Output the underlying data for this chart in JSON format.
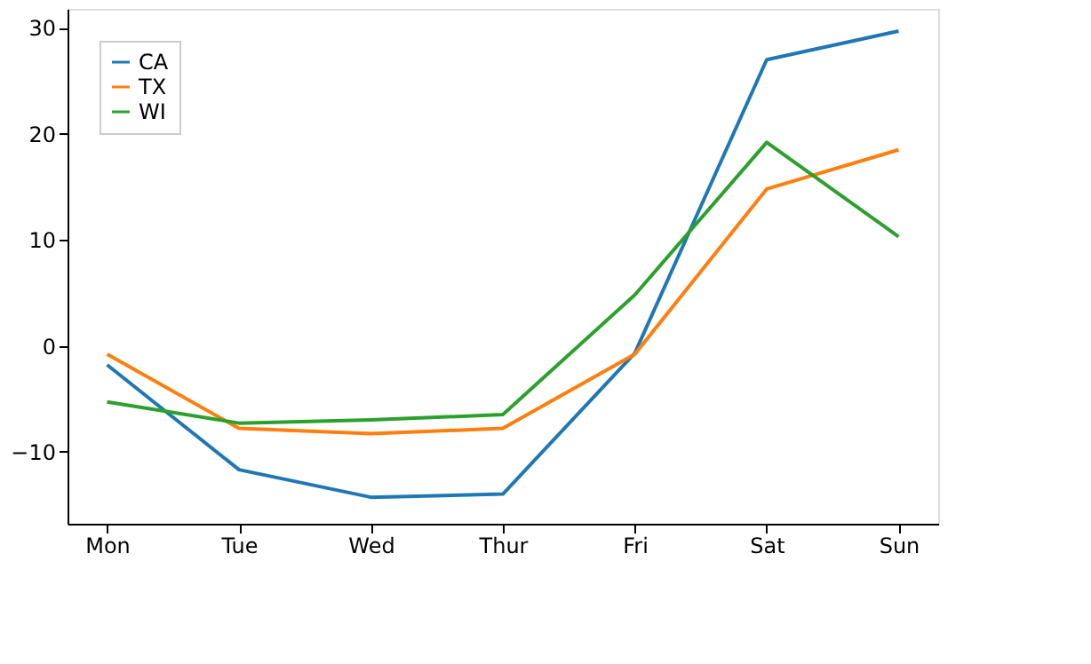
{
  "chart_data": {
    "type": "line",
    "categories": [
      "Mon",
      "Tue",
      "Wed",
      "Thur",
      "Fri",
      "Sat",
      "Sun"
    ],
    "series": [
      {
        "name": "CA",
        "color": "#1f77b4",
        "values": [
          -1.8,
          -11.7,
          -14.3,
          -14.0,
          -0.7,
          27.0,
          29.7
        ]
      },
      {
        "name": "TX",
        "color": "#ff7f0e",
        "values": [
          -0.8,
          -7.8,
          -8.3,
          -7.8,
          -0.8,
          14.8,
          18.5
        ]
      },
      {
        "name": "WI",
        "color": "#2ca02c",
        "values": [
          -5.3,
          -7.3,
          -7.0,
          -6.5,
          4.8,
          19.2,
          10.3
        ]
      }
    ],
    "ylim": [
      -16.8,
      31.8
    ],
    "yticks": [
      {
        "value": -10,
        "label": "−10"
      },
      0,
      10,
      20,
      30
    ],
    "grid": false,
    "legend": "top left",
    "marker": "none",
    "line_style": "solid"
  }
}
